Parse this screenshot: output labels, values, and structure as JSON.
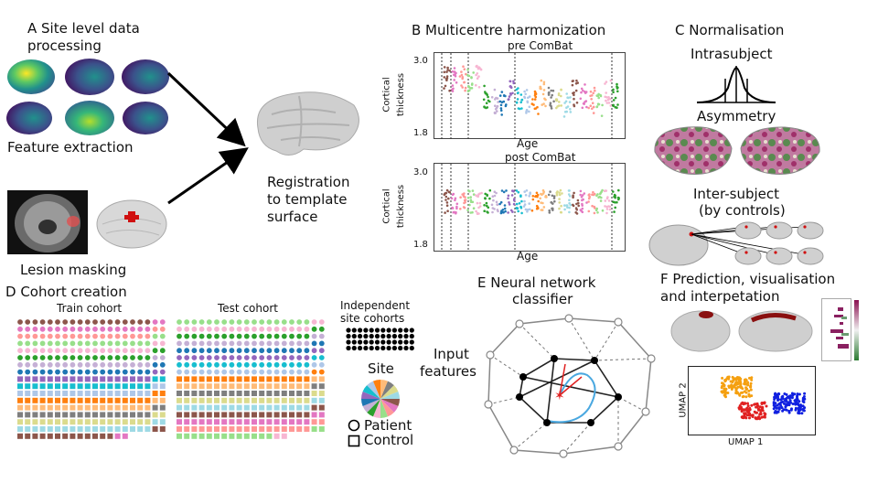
{
  "panel_a": {
    "title_line1": "A Site level data",
    "title_line2": "processing",
    "feature_label": "Feature extraction",
    "lesion_label": "Lesion masking",
    "registration_line1": "Registration",
    "registration_line2": "to template",
    "registration_line3": "surface"
  },
  "panel_b": {
    "title": "B Multicentre harmonization",
    "pre_title": "pre ComBat",
    "post_title": "post ComBat",
    "ylabel_line1": "Cortical",
    "ylabel_line2": "thickness",
    "xlabel": "Age",
    "ytick_top": "3.0",
    "ytick_bottom": "1.8"
  },
  "panel_c": {
    "title": "C Normalisation",
    "intrasubject": "Intrasubject",
    "asymmetry": "Asymmetry",
    "intersubject_line1": "Inter-subject",
    "intersubject_line2": "(by controls)"
  },
  "panel_d": {
    "title": "D Cohort creation",
    "train_label": "Train cohort",
    "test_label": "Test cohort",
    "independent_line1": "Independent",
    "independent_line2": "site cohorts",
    "site_label": "Site",
    "patient_label": "Patient",
    "control_label": "Control"
  },
  "panel_e": {
    "title_line1": "E Neural network",
    "title_line2": "classifier",
    "input_line1": "Input",
    "input_line2": "features"
  },
  "panel_f": {
    "title_line1": "F Prediction, visualisation",
    "title_line2": "and interpetation",
    "umap_x": "UMAP 1",
    "umap_y": "UMAP 2"
  },
  "colors": {
    "arrow": "#000000",
    "brain_gray": "#cfcfcf",
    "lesion_red": "#d01010",
    "umap_orange": "#f5a010",
    "umap_red": "#e02020",
    "umap_blue": "#1020e0",
    "nn_blue": "#4aa8e0",
    "nn_red": "#e02020",
    "asym_pink": "#a0306a",
    "asym_green": "#5a8a50"
  },
  "site_palette": [
    "#8c564b",
    "#e377c2",
    "#ff9896",
    "#98df8a",
    "#f7b6d2",
    "#2ca02c",
    "#c5b0d5",
    "#1f77b4",
    "#9467bd",
    "#17becf",
    "#aec7e8",
    "#ff7f0e",
    "#ffbb78",
    "#7f7f7f",
    "#dbdb8d",
    "#9edae5"
  ]
}
